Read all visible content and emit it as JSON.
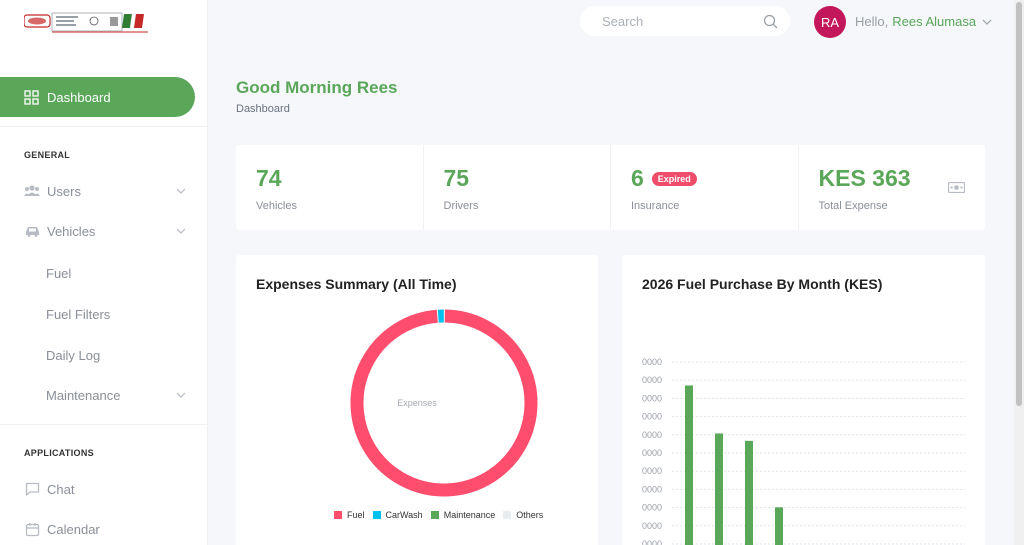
{
  "brand": {
    "accent": "#5aa75a",
    "badge": "#ef4d6a",
    "avatar_bg": "#c2185b"
  },
  "sidebar": {
    "active": {
      "label": "Dashboard",
      "icon": "dashboard-grid-icon"
    },
    "general_label": "GENERAL",
    "users": {
      "label": "Users",
      "icon": "users-icon"
    },
    "vehicles": {
      "label": "Vehicles",
      "icon": "car-icon"
    },
    "vehicle_subitems": [
      "Fuel",
      "Fuel Filters",
      "Daily Log",
      "Maintenance"
    ],
    "applications_label": "APPLICATIONS",
    "chat": {
      "label": "Chat",
      "icon": "chat-icon"
    },
    "calendar": {
      "label": "Calendar",
      "icon": "calendar-icon"
    }
  },
  "header": {
    "search_placeholder": "Search",
    "avatar_initials": "RA",
    "hello": "Hello,",
    "user_name": "Rees Alumasa"
  },
  "page": {
    "greeting": "Good Morning Rees",
    "breadcrumb": "Dashboard"
  },
  "stats": [
    {
      "value": "74",
      "label": "Vehicles"
    },
    {
      "value": "75",
      "label": "Drivers"
    },
    {
      "value": "6",
      "label": "Insurance",
      "badge": "Expired"
    },
    {
      "value": "KES 363",
      "label": "Total Expense",
      "icon": "cash-icon"
    }
  ],
  "expenses_card": {
    "title": "Expenses Summary (All Time)"
  },
  "fuel_card": {
    "title": "2026 Fuel Purchase By Month (KES)"
  },
  "chart_data": [
    {
      "type": "pie",
      "title": "Expenses Summary (All Time)",
      "center_label": "Expenses",
      "labels": [
        "Fuel",
        "CarWash",
        "Maintenance",
        "Others"
      ],
      "values": [
        98.8,
        1.2,
        0,
        0
      ],
      "colors": [
        "#ff4d6d",
        "#00c0ef",
        "#5aa75a",
        "#e8edf2"
      ],
      "legend": "bottom"
    },
    {
      "type": "bar",
      "title": "2026 Fuel Purchase By Month (KES)",
      "tick_labels": [
        "0000",
        "0000",
        "0000",
        "0000",
        "0000",
        "0000",
        "0000",
        "0000",
        "0000",
        "0000",
        "0000"
      ],
      "values": [
        195,
        130,
        120,
        30
      ],
      "ylim": [
        0,
        220
      ],
      "grid": true,
      "color": "#5aa75a"
    }
  ]
}
